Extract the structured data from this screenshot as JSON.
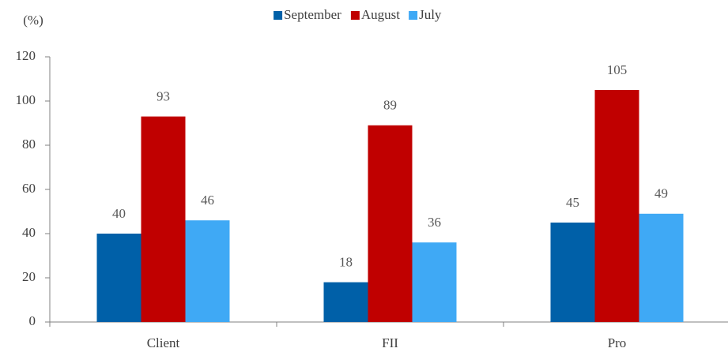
{
  "chart_data": {
    "type": "bar",
    "y_label": "(%)",
    "categories": [
      "Client",
      "FII",
      "Pro"
    ],
    "series": [
      {
        "name": "September",
        "color": "#0060a8",
        "values": [
          40,
          18,
          45
        ]
      },
      {
        "name": "August",
        "color": "#c00000",
        "values": [
          93,
          89,
          105
        ]
      },
      {
        "name": "July",
        "color": "#3fa9f5",
        "values": [
          46,
          36,
          49
        ]
      }
    ],
    "ylim": [
      0,
      120
    ],
    "yticks": [
      0,
      20,
      40,
      60,
      80,
      100,
      120
    ],
    "legend": "top"
  }
}
